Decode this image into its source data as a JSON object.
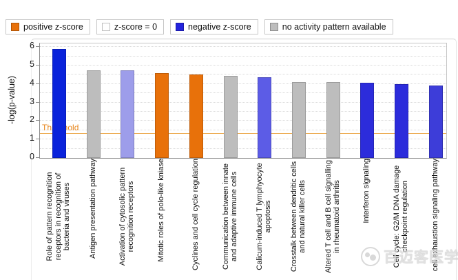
{
  "legend": {
    "items": [
      {
        "label": "positive z-score",
        "color": "#E8710A",
        "name": "positive-z-score"
      },
      {
        "label": "z-score = 0",
        "color": "#FFFFFF",
        "name": "z-score-zero"
      },
      {
        "label": "negative z-score",
        "color": "#2323DD",
        "name": "negative-z-score"
      },
      {
        "label": "no activity pattern available",
        "color": "#BDBDBD",
        "name": "no-activity-pattern"
      }
    ]
  },
  "chart_data": {
    "type": "bar",
    "title": "",
    "xlabel": "",
    "ylabel": "-log(p-value)",
    "ylim": [
      0,
      6
    ],
    "ytick_step": 1,
    "grid_step": 0.5,
    "grid": true,
    "legend_position": "top",
    "threshold": {
      "value": 1.3,
      "label": "Threshold"
    },
    "categories": [
      "Role of pattern recognition receptors in recognition of bacteria and viruses",
      "Antigen presentation pathway",
      "Activation of cytosolic pattern recognition receptors",
      "Mitotic roles of polo-like kniase",
      "Cyclines and cell cycle regulation",
      "Communication between innate and adaptive immune cells",
      "Calicum-induced T lymphyocyte apoptosis",
      "Crosstalk between dendritic cells and natural killer cells",
      "Altered T cell and B cell signalling in rheumatoid arthritis",
      "Interferon signaling",
      "Cell cycle: G2/M DNA damage checkpoint regulation",
      "cell exhaustion signaling pathway"
    ],
    "values": [
      5.9,
      4.75,
      4.75,
      4.6,
      4.5,
      4.45,
      4.35,
      4.1,
      4.1,
      4.05,
      4.0,
      3.9
    ],
    "bar_colors": [
      "#0A23DB",
      "#BDBDBD",
      "#9D9DEA",
      "#E8710A",
      "#E8710A",
      "#BDBDBD",
      "#5C5CE6",
      "#BDBDBD",
      "#BDBDBD",
      "#2C2CDB",
      "#2C2CDB",
      "#3D3DD9"
    ],
    "bar_legend_class": [
      "negative z-score",
      "no activity pattern available",
      "negative z-score",
      "positive z-score",
      "positive z-score",
      "no activity pattern available",
      "negative z-score",
      "no activity pattern available",
      "no activity pattern available",
      "negative z-score",
      "negative z-score",
      "negative z-score"
    ]
  },
  "watermark": {
    "text": "百迈客医学"
  }
}
